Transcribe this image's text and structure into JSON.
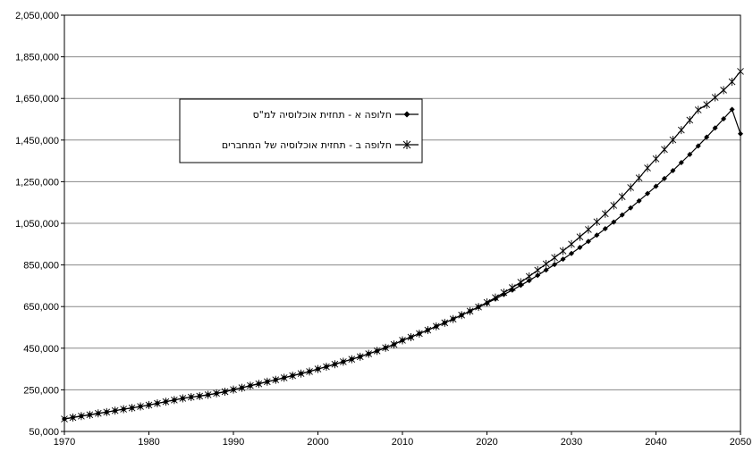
{
  "chart_data": {
    "type": "line",
    "title": "",
    "xlabel": "",
    "ylabel": "",
    "xlim": [
      1970,
      2050
    ],
    "ylim": [
      50000,
      2050000
    ],
    "x_ticks": [
      "1970",
      "1980",
      "1990",
      "2000",
      "2010",
      "2020",
      "2030",
      "2040",
      "2050"
    ],
    "y_ticks": [
      "2,050,000",
      "1,850,000",
      "1,650,000",
      "1,450,000",
      "1,250,000",
      "1,050,000",
      "850,000",
      "650,000",
      "450,000",
      "250,000",
      "50,000"
    ],
    "grid": "horizontal",
    "legend_position": "upper-left-inside",
    "series": [
      {
        "name": "חלופה א - תחזית אוכלוסיה למ\"ס",
        "marker": "diamond",
        "color": "#000000",
        "x": [
          1970,
          1971,
          1972,
          1973,
          1974,
          1975,
          1976,
          1977,
          1978,
          1979,
          1980,
          1981,
          1982,
          1983,
          1984,
          1985,
          1986,
          1987,
          1988,
          1989,
          1990,
          1991,
          1992,
          1993,
          1994,
          1995,
          1996,
          1997,
          1998,
          1999,
          2000,
          2001,
          2002,
          2003,
          2004,
          2005,
          2006,
          2007,
          2008,
          2009,
          2010,
          2011,
          2012,
          2013,
          2014,
          2015,
          2016,
          2017,
          2018,
          2019,
          2020,
          2021,
          2022,
          2023,
          2024,
          2025,
          2026,
          2027,
          2028,
          2029,
          2030,
          2031,
          2032,
          2033,
          2034,
          2035,
          2036,
          2037,
          2038,
          2039,
          2040,
          2041,
          2042,
          2043,
          2044,
          2045,
          2046,
          2047,
          2048,
          2049,
          2050
        ],
        "values": [
          110000,
          117000,
          124000,
          130000,
          137000,
          143000,
          150000,
          157000,
          163000,
          170000,
          177000,
          185000,
          193000,
          201000,
          209000,
          215000,
          220000,
          226000,
          233000,
          241000,
          251000,
          260000,
          270000,
          279000,
          289000,
          298000,
          308000,
          318000,
          328000,
          338000,
          350000,
          361000,
          373000,
          385000,
          397000,
          409000,
          423000,
          437000,
          452000,
          468000,
          488000,
          503000,
          520000,
          537000,
          555000,
          572000,
          590000,
          609000,
          628000,
          648000,
          666000,
          687000,
          708000,
          729000,
          752000,
          775000,
          800000,
          826000,
          852000,
          878000,
          905000,
          934000,
          963000,
          993000,
          1024000,
          1056000,
          1090000,
          1124000,
          1158000,
          1193000,
          1228000,
          1265000,
          1303000,
          1342000,
          1381000,
          1422000,
          1464000,
          1508000,
          1552000,
          1597000,
          1480000
        ]
      },
      {
        "name": "חלופה ב - תחזית אוכלוסיה של המחברים",
        "marker": "star",
        "color": "#000000",
        "x": [
          1970,
          1971,
          1972,
          1973,
          1974,
          1975,
          1976,
          1977,
          1978,
          1979,
          1980,
          1981,
          1982,
          1983,
          1984,
          1985,
          1986,
          1987,
          1988,
          1989,
          1990,
          1991,
          1992,
          1993,
          1994,
          1995,
          1996,
          1997,
          1998,
          1999,
          2000,
          2001,
          2002,
          2003,
          2004,
          2005,
          2006,
          2007,
          2008,
          2009,
          2010,
          2011,
          2012,
          2013,
          2014,
          2015,
          2016,
          2017,
          2018,
          2019,
          2020,
          2021,
          2022,
          2023,
          2024,
          2025,
          2026,
          2027,
          2028,
          2029,
          2030,
          2031,
          2032,
          2033,
          2034,
          2035,
          2036,
          2037,
          2038,
          2039,
          2040,
          2041,
          2042,
          2043,
          2044,
          2045,
          2046,
          2047,
          2048,
          2049,
          2050
        ],
        "values": [
          110000,
          117000,
          124000,
          130000,
          137000,
          143000,
          150000,
          157000,
          163000,
          170000,
          177000,
          185000,
          193000,
          201000,
          209000,
          215000,
          220000,
          226000,
          233000,
          241000,
          251000,
          260000,
          270000,
          279000,
          289000,
          298000,
          308000,
          318000,
          328000,
          338000,
          350000,
          361000,
          373000,
          385000,
          397000,
          409000,
          423000,
          437000,
          452000,
          468000,
          488000,
          503000,
          520000,
          537000,
          555000,
          572000,
          590000,
          609000,
          628000,
          648000,
          670000,
          693000,
          717000,
          741000,
          767000,
          795000,
          825000,
          855000,
          885000,
          917000,
          950000,
          985000,
          1020000,
          1057000,
          1096000,
          1136000,
          1178000,
          1222000,
          1268000,
          1316000,
          1360000,
          1405000,
          1451000,
          1498000,
          1546000,
          1595000,
          1620000,
          1655000,
          1690000,
          1730000,
          1780000
        ]
      }
    ]
  }
}
